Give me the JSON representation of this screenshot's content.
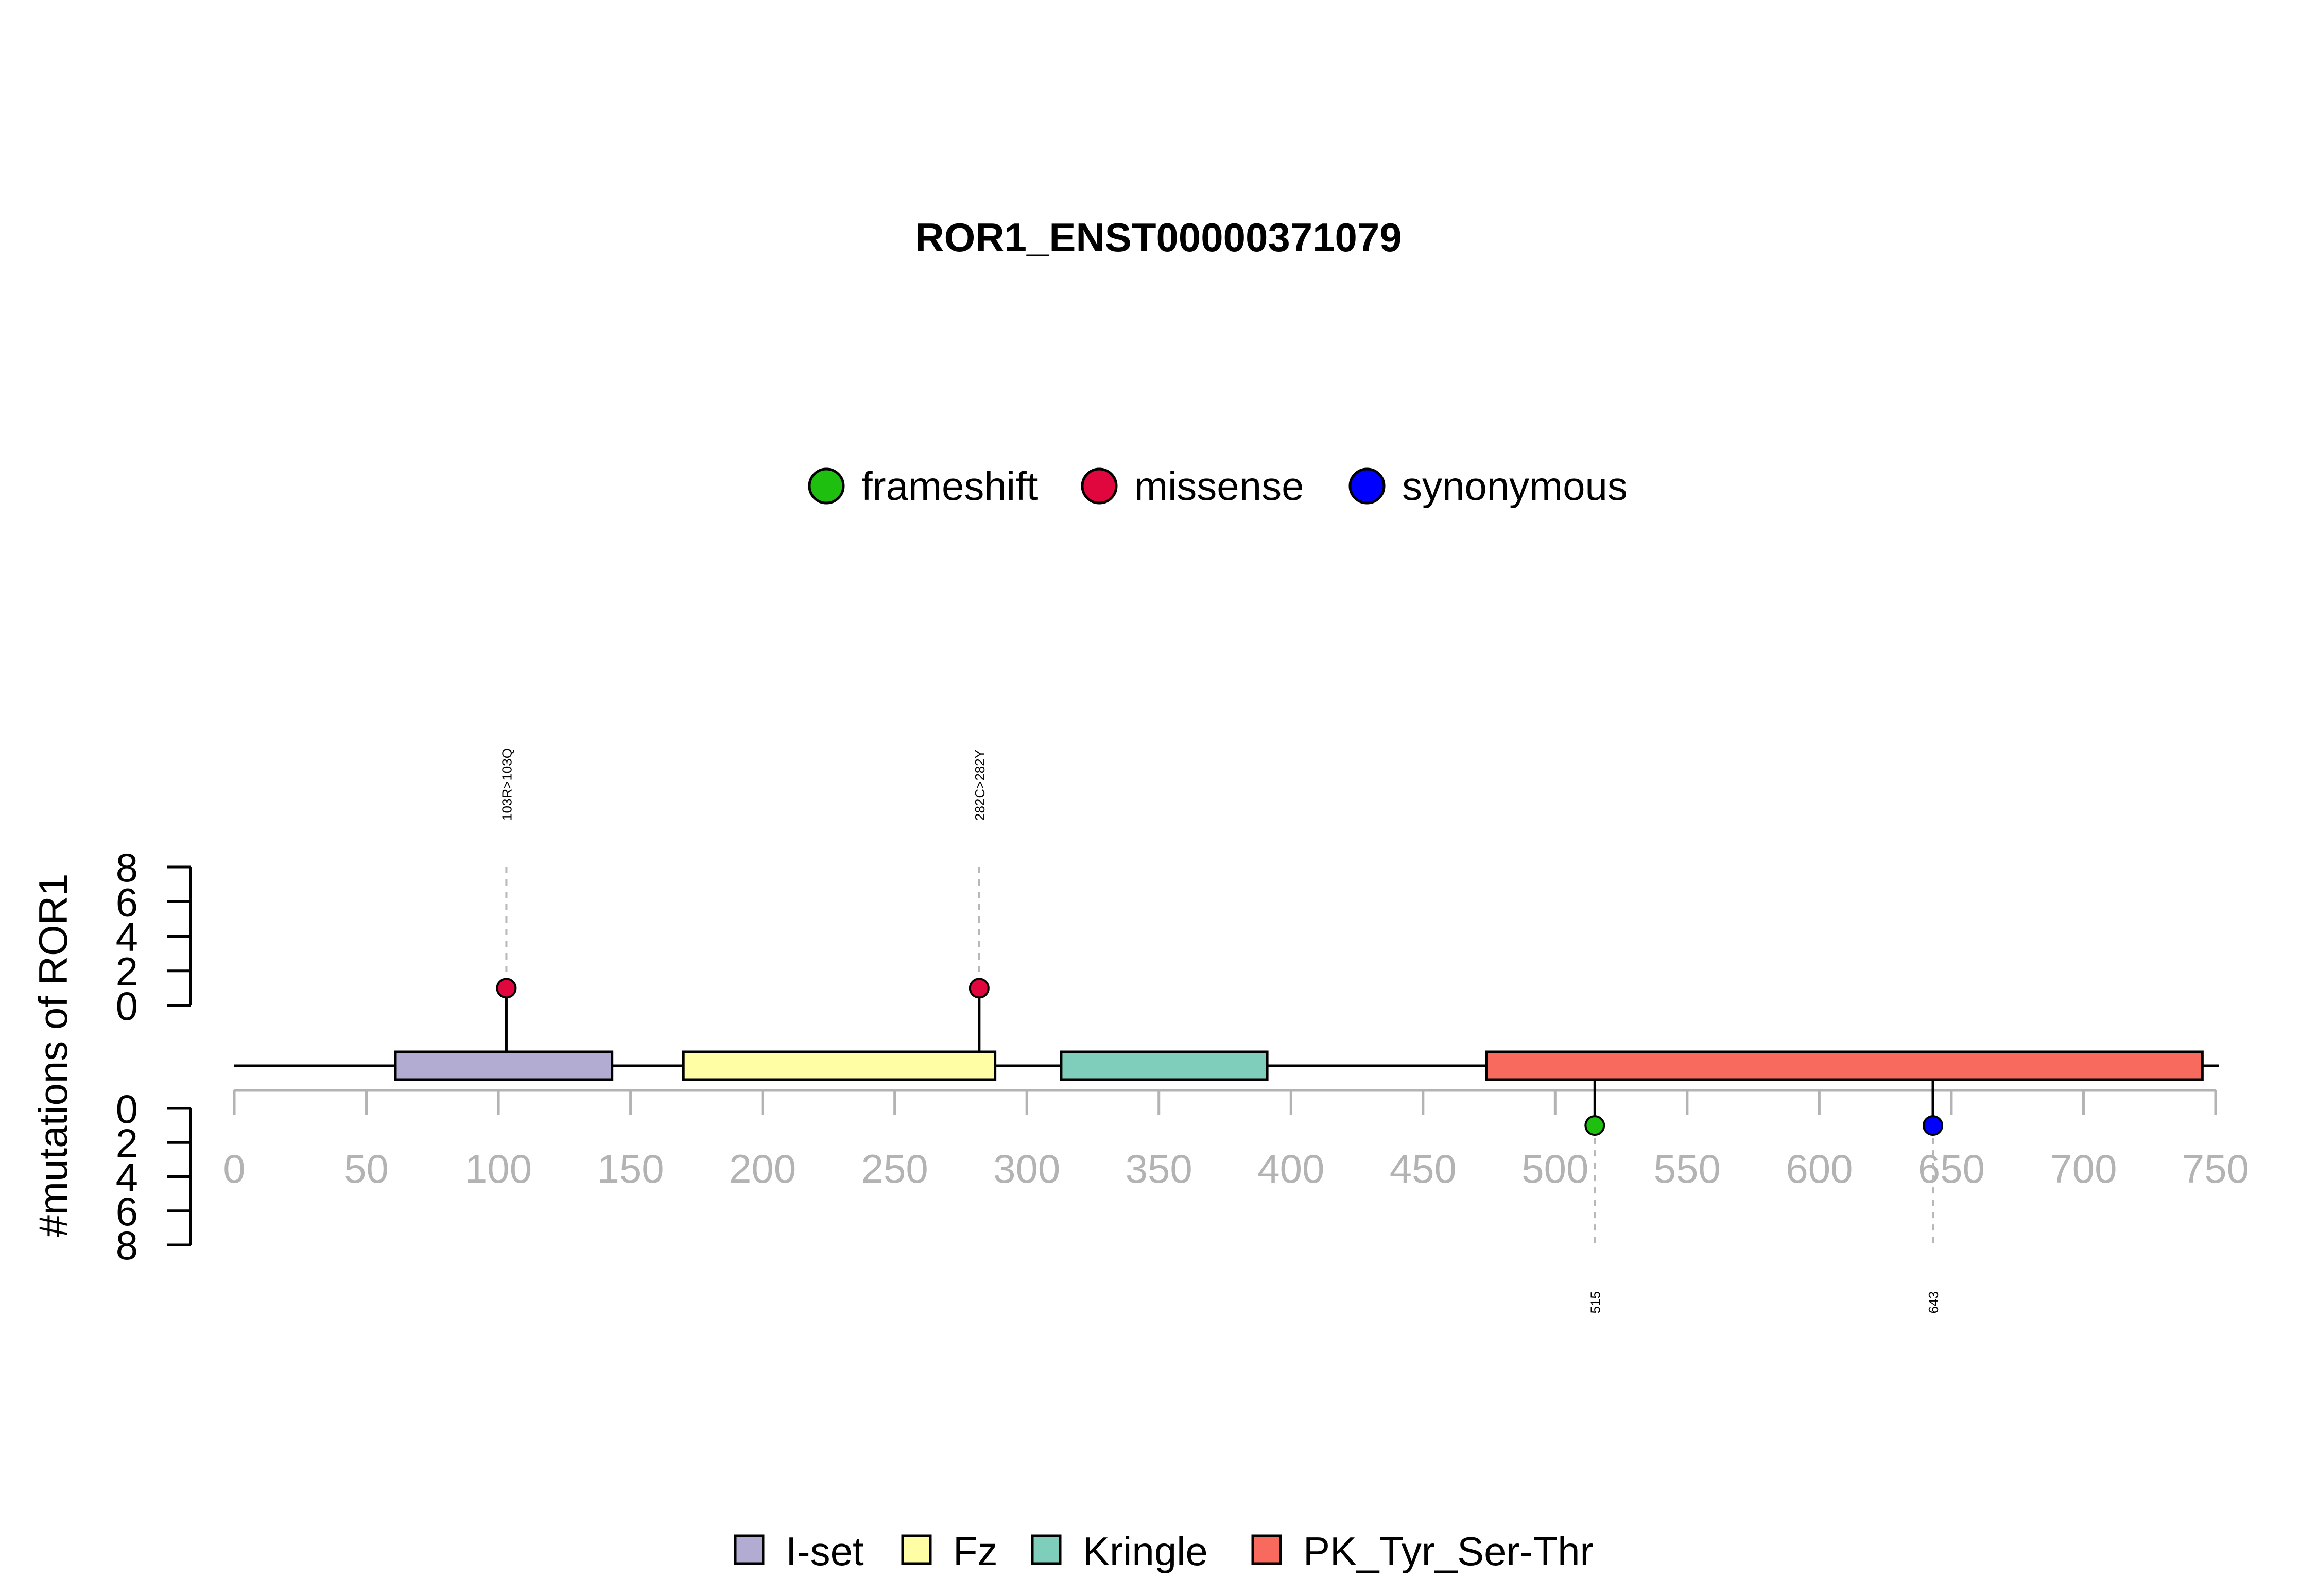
{
  "chart_data": {
    "type": "lollipop",
    "title": "ROR1_ENST00000371079",
    "ylabel": "#mutations of ROR1",
    "xlim": [
      0,
      750
    ],
    "x_ticks": [
      0,
      50,
      100,
      150,
      200,
      250,
      300,
      350,
      400,
      450,
      500,
      550,
      600,
      650,
      700,
      750
    ],
    "ylim_top": [
      0,
      8
    ],
    "ylim_bottom": [
      0,
      8
    ],
    "y_ticks": [
      0,
      2,
      4,
      6,
      8
    ],
    "protein_length": 745,
    "mutation_types": [
      {
        "name": "frameshift",
        "color": "#1fbf0f"
      },
      {
        "name": "missense",
        "color": "#e0063e"
      },
      {
        "name": "synonymous",
        "color": "#0000ff"
      }
    ],
    "domains": [
      {
        "name": "I-set",
        "start": 61,
        "end": 143,
        "color": "#b2acd2"
      },
      {
        "name": "Fz",
        "start": 170,
        "end": 288,
        "color": "#fffea5"
      },
      {
        "name": "Kringle",
        "start": 313,
        "end": 391,
        "color": "#7fcdbb"
      },
      {
        "name": "PK_Tyr_Ser-Thr",
        "start": 474,
        "end": 745,
        "color": "#f8695e"
      }
    ],
    "domain_legend": [
      {
        "name": "I-set",
        "color": "#b2acd2"
      },
      {
        "name": "Fz",
        "color": "#fffea5"
      },
      {
        "name": "Kringle",
        "color": "#7fcdbb"
      },
      {
        "name": "PK_Tyr_Ser-Thr",
        "color": "#f8695e"
      }
    ],
    "mutations": [
      {
        "position": 103,
        "count": 1,
        "type": "missense",
        "side": "top",
        "label": "103R>103Q"
      },
      {
        "position": 282,
        "count": 1,
        "type": "missense",
        "side": "top",
        "label": "282C>282Y"
      },
      {
        "position": 515,
        "count": 1,
        "type": "frameshift",
        "side": "bottom",
        "label": "515"
      },
      {
        "position": 643,
        "count": 1,
        "type": "synonymous",
        "side": "bottom",
        "label": "643"
      }
    ]
  }
}
